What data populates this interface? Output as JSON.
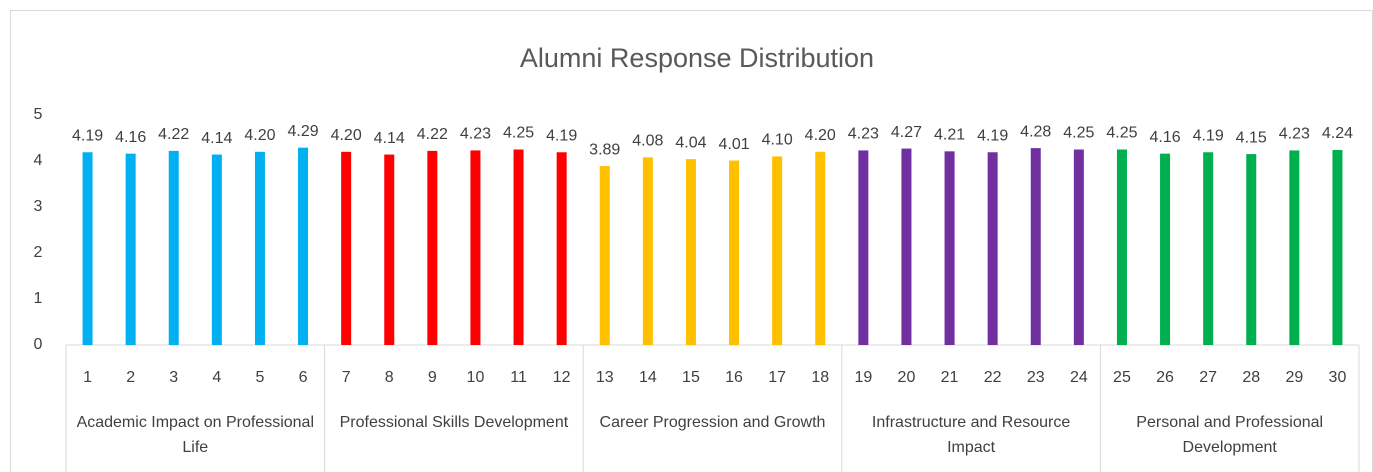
{
  "chart_data": {
    "type": "bar",
    "title": "Alumni Response Distribution",
    "groups": [
      {
        "name": "Academic Impact on Professional Life",
        "color": "#00b0f0",
        "categories": [
          "1",
          "2",
          "3",
          "4",
          "5",
          "6"
        ],
        "values": [
          4.19,
          4.16,
          4.22,
          4.14,
          4.2,
          4.29
        ],
        "value_labels": [
          "4.19",
          "4.16",
          "4.22",
          "4.14",
          "4.20",
          "4.29"
        ]
      },
      {
        "name": "Professional Skills Development",
        "color": "#ff0000",
        "categories": [
          "7",
          "8",
          "9",
          "10",
          "11",
          "12"
        ],
        "values": [
          4.2,
          4.14,
          4.22,
          4.23,
          4.25,
          4.19
        ],
        "value_labels": [
          "4.20",
          "4.14",
          "4.22",
          "4.23",
          "4.25",
          "4.19"
        ]
      },
      {
        "name": "Career Progression and Growth",
        "color": "#ffc000",
        "categories": [
          "13",
          "14",
          "15",
          "16",
          "17",
          "18"
        ],
        "values": [
          3.89,
          4.08,
          4.04,
          4.01,
          4.1,
          4.2
        ],
        "value_labels": [
          "3.89",
          "4.08",
          "4.04",
          "4.01",
          "4.10",
          "4.20"
        ]
      },
      {
        "name": "Infrastructure and Resource Impact",
        "color": "#7030a0",
        "categories": [
          "19",
          "20",
          "21",
          "22",
          "23",
          "24"
        ],
        "values": [
          4.23,
          4.27,
          4.21,
          4.19,
          4.28,
          4.25
        ],
        "value_labels": [
          "4.23",
          "4.27",
          "4.21",
          "4.19",
          "4.28",
          "4.25"
        ]
      },
      {
        "name": "Personal and Professional Development",
        "color": "#00b050",
        "categories": [
          "25",
          "26",
          "27",
          "28",
          "29",
          "30"
        ],
        "values": [
          4.25,
          4.16,
          4.19,
          4.15,
          4.23,
          4.24
        ],
        "value_labels": [
          "4.25",
          "4.16",
          "4.19",
          "4.15",
          "4.23",
          "4.24"
        ]
      }
    ],
    "ylim": [
      0,
      5
    ],
    "yticks": [
      0,
      1,
      2,
      3,
      4,
      5
    ]
  }
}
